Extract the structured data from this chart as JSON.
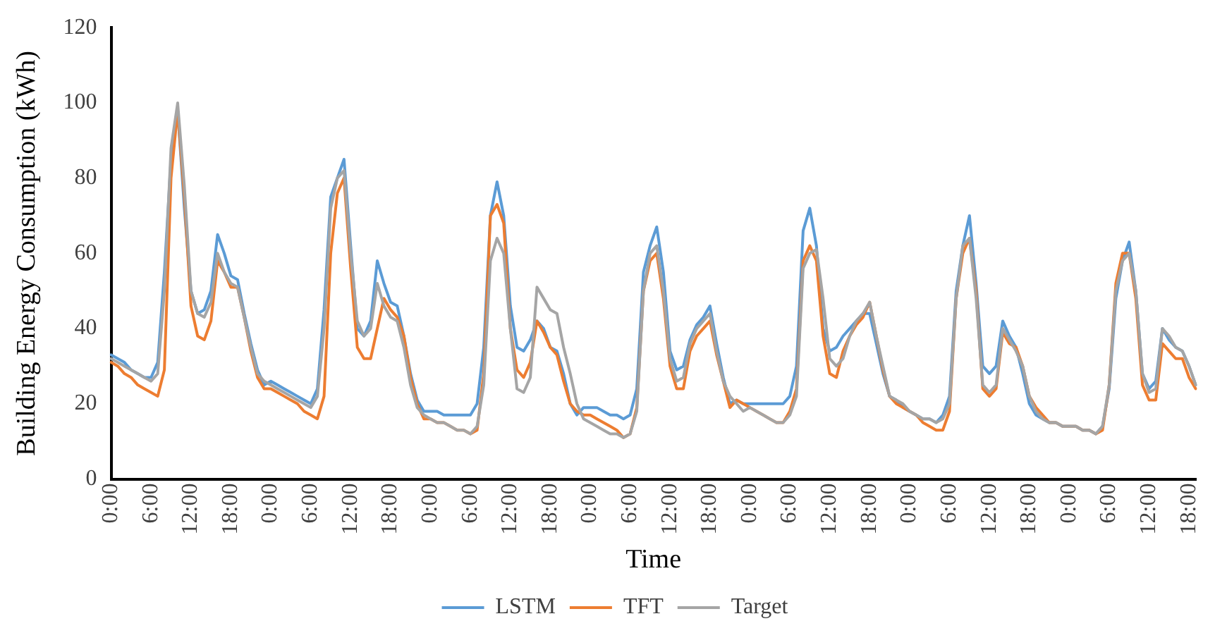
{
  "chart_data": {
    "type": "line",
    "xlabel": "Time",
    "ylabel": "Building Energy Consumption (kWh)",
    "categories": [
      "0:00",
      null,
      null,
      null,
      null,
      null,
      "6:00",
      null,
      null,
      null,
      null,
      null,
      "12:00",
      null,
      null,
      null,
      null,
      null,
      "18:00",
      null,
      null,
      null,
      null,
      null,
      "0:00",
      null,
      null,
      null,
      null,
      null,
      "6:00",
      null,
      null,
      null,
      null,
      null,
      "12:00",
      null,
      null,
      null,
      null,
      null,
      "18:00",
      null,
      null,
      null,
      null,
      null,
      "0:00",
      null,
      null,
      null,
      null,
      null,
      "6:00",
      null,
      null,
      null,
      null,
      null,
      "12:00",
      null,
      null,
      null,
      null,
      null,
      "18:00",
      null,
      null,
      null,
      null,
      null,
      "0:00",
      null,
      null,
      null,
      null,
      null,
      "6:00",
      null,
      null,
      null,
      null,
      null,
      "12:00",
      null,
      null,
      null,
      null,
      null,
      "18:00",
      null,
      null,
      null,
      null,
      null,
      "0:00",
      null,
      null,
      null,
      null,
      null,
      "6:00",
      null,
      null,
      null,
      null,
      null,
      "12:00",
      null,
      null,
      null,
      null,
      null,
      "18:00",
      null,
      null,
      null,
      null,
      null,
      "0:00",
      null,
      null,
      null,
      null,
      null,
      "6:00",
      null,
      null,
      null,
      null,
      null,
      "12:00",
      null,
      null,
      null,
      null,
      null,
      "18:00",
      null,
      null,
      null,
      null,
      null,
      "0:00",
      null,
      null,
      null,
      null,
      null,
      "6:00",
      null,
      null,
      null,
      null,
      null,
      "12:00",
      null,
      null,
      null,
      null,
      null,
      "18:00",
      null
    ],
    "ylim": [
      0,
      120
    ],
    "yticks": [
      0,
      20,
      40,
      60,
      80,
      100,
      120
    ],
    "grid": false,
    "legend": "bottom",
    "marker": "none",
    "line_style": "solid",
    "series": [
      {
        "name": "LSTM",
        "color": "#5b9bd5",
        "values": [
          33,
          32,
          31,
          29,
          28,
          27,
          27,
          31,
          55,
          85,
          98,
          72,
          50,
          44,
          45,
          50,
          65,
          60,
          54,
          53,
          44,
          36,
          29,
          25,
          26,
          25,
          24,
          23,
          22,
          21,
          20,
          24,
          45,
          75,
          80,
          85,
          62,
          40,
          38,
          42,
          58,
          52,
          47,
          46,
          38,
          28,
          21,
          18,
          18,
          18,
          17,
          17,
          17,
          17,
          17,
          20,
          35,
          70,
          79,
          70,
          46,
          35,
          34,
          37,
          42,
          40,
          35,
          34,
          28,
          20,
          17,
          19,
          19,
          19,
          18,
          17,
          17,
          16,
          17,
          24,
          55,
          62,
          67,
          55,
          34,
          29,
          30,
          37,
          41,
          43,
          46,
          36,
          27,
          20,
          21,
          20,
          20,
          20,
          20,
          20,
          20,
          20,
          22,
          30,
          66,
          72,
          62,
          40,
          34,
          35,
          38,
          40,
          42,
          44,
          44,
          36,
          28,
          22,
          21,
          19,
          18,
          17,
          16,
          16,
          15,
          17,
          22,
          50,
          62,
          70,
          52,
          30,
          28,
          30,
          42,
          38,
          35,
          28,
          20,
          17,
          16,
          15,
          15,
          14,
          14,
          14,
          13,
          13,
          12,
          14,
          24,
          48,
          58,
          63,
          50,
          28,
          24,
          26,
          40,
          37,
          35,
          34,
          30,
          25
        ]
      },
      {
        "name": "TFT",
        "color": "#ed7d31",
        "values": [
          31,
          30,
          28,
          27,
          25,
          24,
          23,
          22,
          29,
          80,
          98,
          75,
          46,
          38,
          37,
          42,
          58,
          55,
          51,
          51,
          43,
          34,
          27,
          24,
          24,
          23,
          22,
          21,
          20,
          18,
          17,
          16,
          22,
          60,
          76,
          80,
          56,
          35,
          32,
          32,
          40,
          48,
          45,
          43,
          38,
          27,
          20,
          16,
          16,
          15,
          15,
          14,
          13,
          13,
          12,
          13,
          28,
          70,
          73,
          68,
          40,
          29,
          27,
          31,
          42,
          39,
          35,
          33,
          26,
          20,
          18,
          17,
          17,
          16,
          15,
          14,
          13,
          11,
          12,
          19,
          50,
          58,
          60,
          48,
          30,
          24,
          24,
          34,
          38,
          40,
          42,
          33,
          26,
          19,
          21,
          20,
          19,
          18,
          17,
          16,
          15,
          15,
          18,
          24,
          58,
          62,
          58,
          38,
          28,
          27,
          34,
          38,
          41,
          43,
          47,
          38,
          29,
          22,
          20,
          19,
          18,
          17,
          15,
          14,
          13,
          13,
          18,
          48,
          60,
          64,
          50,
          24,
          22,
          24,
          39,
          36,
          35,
          30,
          22,
          19,
          17,
          15,
          15,
          14,
          14,
          14,
          13,
          13,
          12,
          13,
          25,
          52,
          60,
          60,
          48,
          25,
          21,
          21,
          36,
          34,
          32,
          32,
          27,
          24
        ]
      },
      {
        "name": "Target",
        "color": "#a5a5a5",
        "values": [
          32,
          31,
          30,
          29,
          28,
          27,
          26,
          28,
          50,
          88,
          100,
          78,
          50,
          44,
          43,
          47,
          60,
          55,
          52,
          51,
          43,
          35,
          28,
          26,
          25,
          24,
          23,
          22,
          21,
          20,
          19,
          22,
          40,
          72,
          80,
          82,
          60,
          42,
          38,
          40,
          52,
          46,
          43,
          42,
          35,
          25,
          19,
          17,
          16,
          15,
          15,
          14,
          13,
          13,
          12,
          14,
          25,
          58,
          64,
          60,
          40,
          24,
          23,
          27,
          51,
          48,
          45,
          44,
          35,
          28,
          20,
          16,
          15,
          14,
          13,
          12,
          12,
          11,
          12,
          18,
          50,
          60,
          62,
          50,
          32,
          26,
          27,
          36,
          40,
          42,
          44,
          34,
          26,
          22,
          20,
          18,
          19,
          18,
          17,
          16,
          15,
          15,
          17,
          22,
          56,
          60,
          61,
          48,
          32,
          30,
          32,
          38,
          42,
          44,
          47,
          38,
          30,
          22,
          21,
          20,
          18,
          17,
          16,
          16,
          15,
          16,
          20,
          48,
          62,
          64,
          48,
          25,
          23,
          25,
          40,
          37,
          34,
          30,
          22,
          18,
          16,
          15,
          15,
          14,
          14,
          14,
          13,
          13,
          12,
          14,
          25,
          50,
          58,
          60,
          50,
          28,
          23,
          24,
          40,
          38,
          35,
          34,
          30,
          25
        ]
      }
    ]
  }
}
